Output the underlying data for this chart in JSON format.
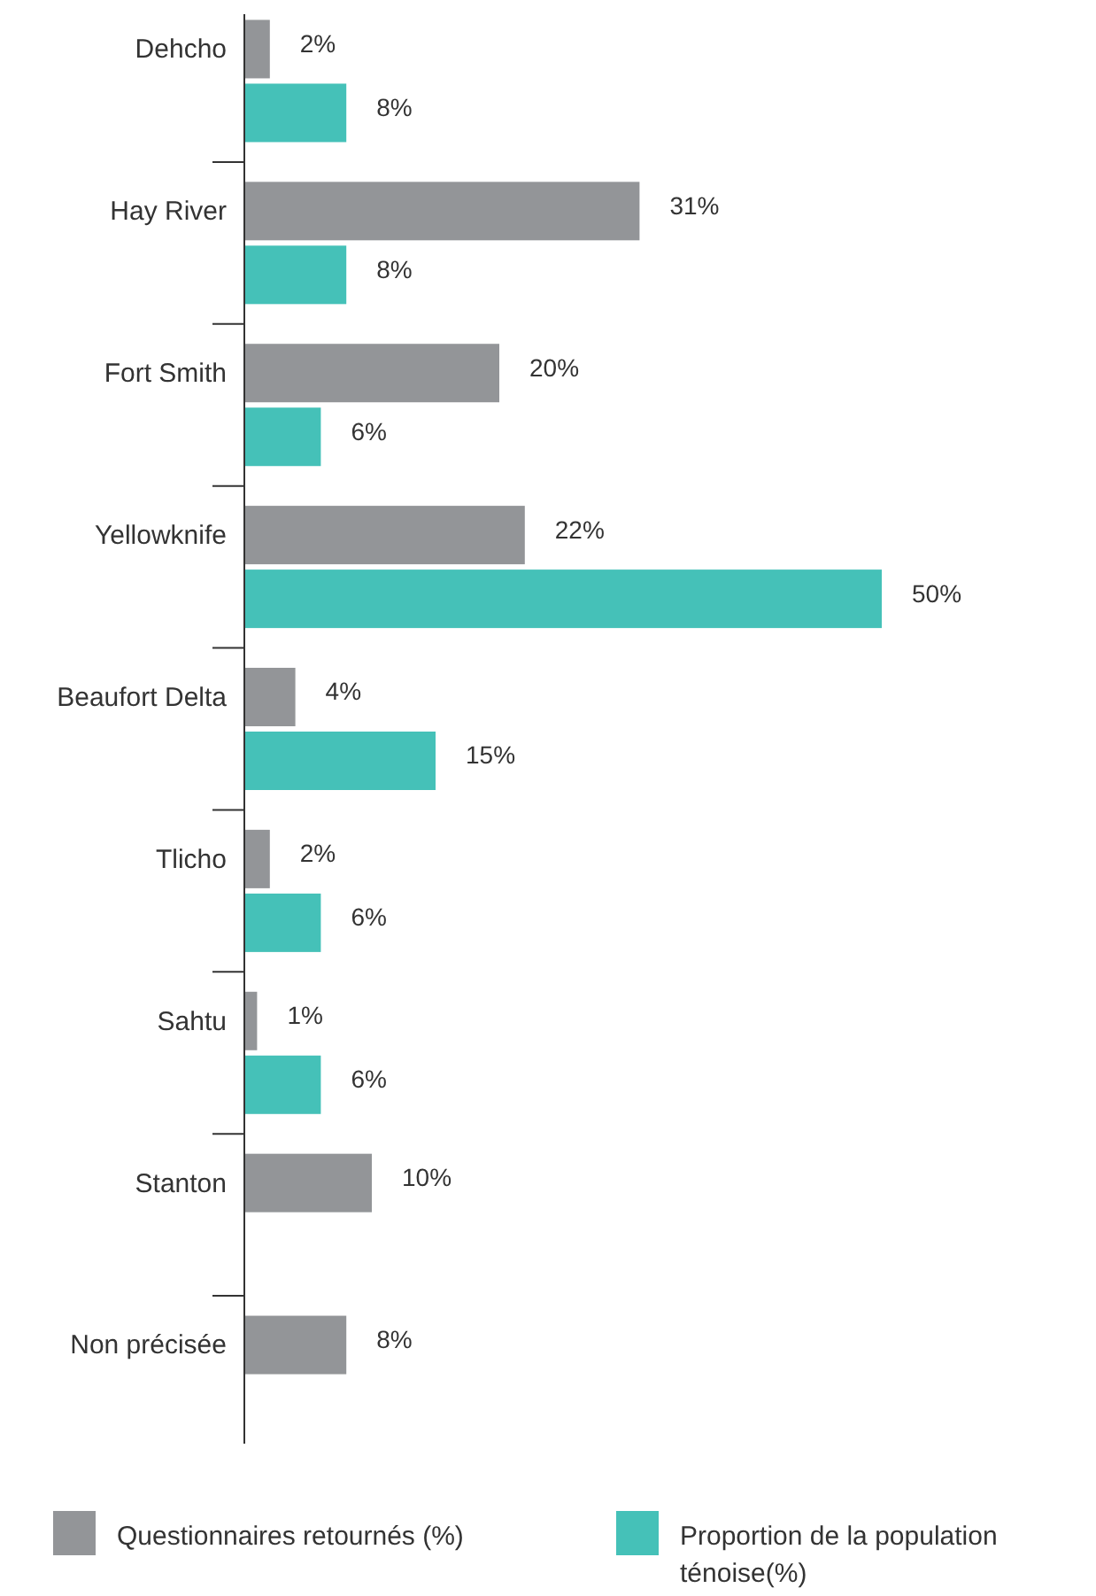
{
  "chart_data": {
    "type": "bar",
    "orientation": "horizontal",
    "legend": "bottom",
    "categories": [
      "Dehcho",
      "Hay River",
      "Fort Smith",
      "Yellowknife",
      "Beaufort Delta",
      "Tlicho",
      "Sahtu",
      "Stanton",
      "Non précisée"
    ],
    "series": [
      {
        "name": "Questionnaires retournés (%)",
        "color": "#939598",
        "values": [
          2,
          31,
          20,
          22,
          4,
          2,
          1,
          10,
          8
        ],
        "value_labels": [
          "2%",
          "31%",
          "20%",
          "22%",
          "4%",
          "2%",
          "1%",
          "10%",
          "8%"
        ]
      },
      {
        "name": "Proportion de la population ténoise(%)",
        "color": "#45c1b8",
        "values": [
          8,
          8,
          6,
          50,
          15,
          6,
          6,
          null,
          null
        ],
        "value_labels": [
          "8%",
          "8%",
          "6%",
          "50%",
          "15%",
          "6%",
          "6%",
          null,
          null
        ]
      }
    ]
  }
}
